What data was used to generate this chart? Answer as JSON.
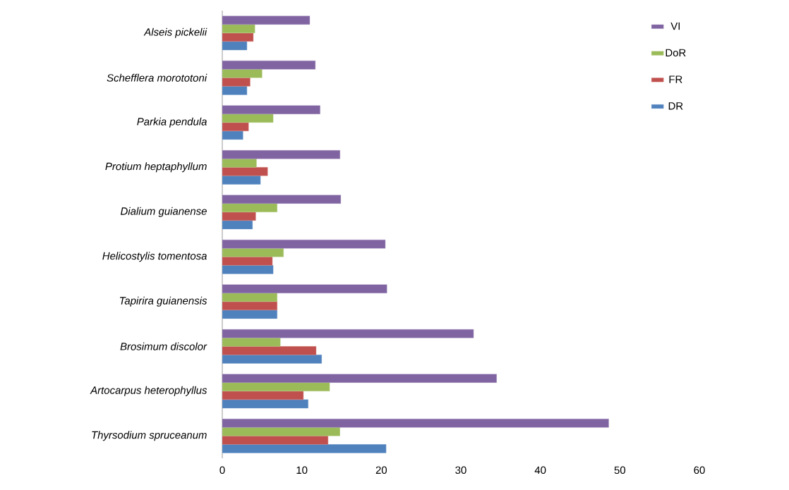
{
  "chart_data": {
    "type": "bar",
    "orientation": "horizontal",
    "categories": [
      "*Alseis pickelii*",
      "*Schefflera morototoni*",
      "*Parkia pendula*",
      "*Protium heptaphyllum*",
      "*Dialium guianense*",
      "*Helicostylis tomentosa*",
      "*Tapirira guianensis*",
      "*Brosimum discolor*",
      "*Artocarpus heterophyllus*",
      "*Thyrsodium spruceanum*"
    ],
    "series": [
      {
        "name": "DR",
        "color": "#4f81bd",
        "values": [
          3.1,
          3.1,
          2.6,
          4.8,
          3.8,
          6.4,
          6.9,
          12.5,
          10.8,
          20.6
        ]
      },
      {
        "name": "FR",
        "color": "#c0504d",
        "values": [
          3.9,
          3.5,
          3.3,
          5.7,
          4.2,
          6.3,
          6.9,
          11.8,
          10.2,
          13.3
        ]
      },
      {
        "name": "DoR",
        "color": "#9bbb59",
        "values": [
          4.1,
          5.0,
          6.4,
          4.3,
          6.9,
          7.7,
          6.9,
          7.3,
          13.5,
          14.8
        ]
      },
      {
        "name": "VI",
        "color": "#8064a2",
        "values": [
          11.0,
          11.7,
          12.3,
          14.8,
          14.9,
          20.5,
          20.7,
          31.6,
          34.5,
          48.6
        ]
      }
    ],
    "xlim": [
      0,
      60
    ],
    "xticks": [
      0,
      10,
      20,
      30,
      40,
      50,
      60
    ],
    "legend": "right"
  }
}
